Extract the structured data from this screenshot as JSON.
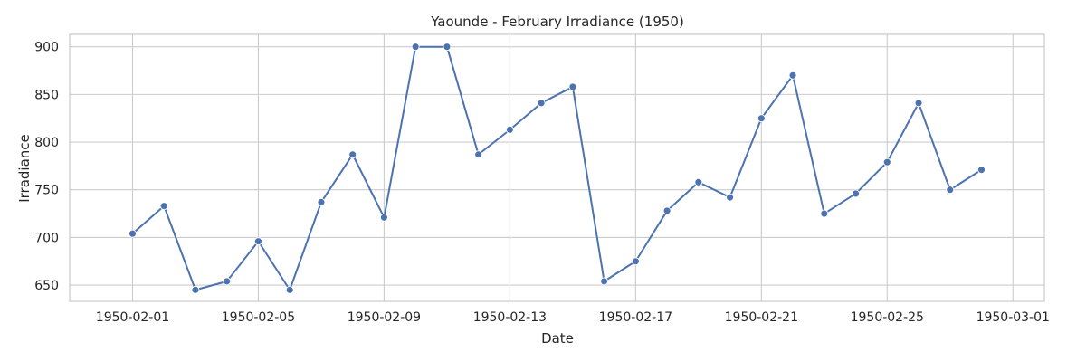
{
  "chart_data": {
    "type": "line",
    "title": "Yaounde - February Irradiance (1950)",
    "xlabel": "Date",
    "ylabel": "Irradiance",
    "x": [
      "1950-02-01",
      "1950-02-02",
      "1950-02-03",
      "1950-02-04",
      "1950-02-05",
      "1950-02-06",
      "1950-02-07",
      "1950-02-08",
      "1950-02-09",
      "1950-02-10",
      "1950-02-11",
      "1950-02-12",
      "1950-02-13",
      "1950-02-14",
      "1950-02-15",
      "1950-02-16",
      "1950-02-17",
      "1950-02-18",
      "1950-02-19",
      "1950-02-20",
      "1950-02-21",
      "1950-02-22",
      "1950-02-23",
      "1950-02-24",
      "1950-02-25",
      "1950-02-26",
      "1950-02-27",
      "1950-02-28"
    ],
    "series": [
      {
        "values": [
          704,
          733,
          645,
          654,
          696,
          645,
          737,
          787,
          721,
          900,
          900,
          787,
          813,
          841,
          858,
          654,
          675,
          728,
          758,
          742,
          825,
          870,
          725,
          746,
          779,
          841,
          750,
          771
        ]
      }
    ],
    "xlim": [
      "1950-01-30",
      "1950-03-02"
    ],
    "ylim": [
      633,
      913
    ],
    "x_ticks": [
      "1950-02-01",
      "1950-02-05",
      "1950-02-09",
      "1950-02-13",
      "1950-02-17",
      "1950-02-21",
      "1950-02-25",
      "1950-03-01"
    ],
    "y_ticks": [
      650,
      700,
      750,
      800,
      850,
      900
    ],
    "grid": true,
    "line_color": "#4c72b0",
    "grid_color": "#cccccc"
  }
}
